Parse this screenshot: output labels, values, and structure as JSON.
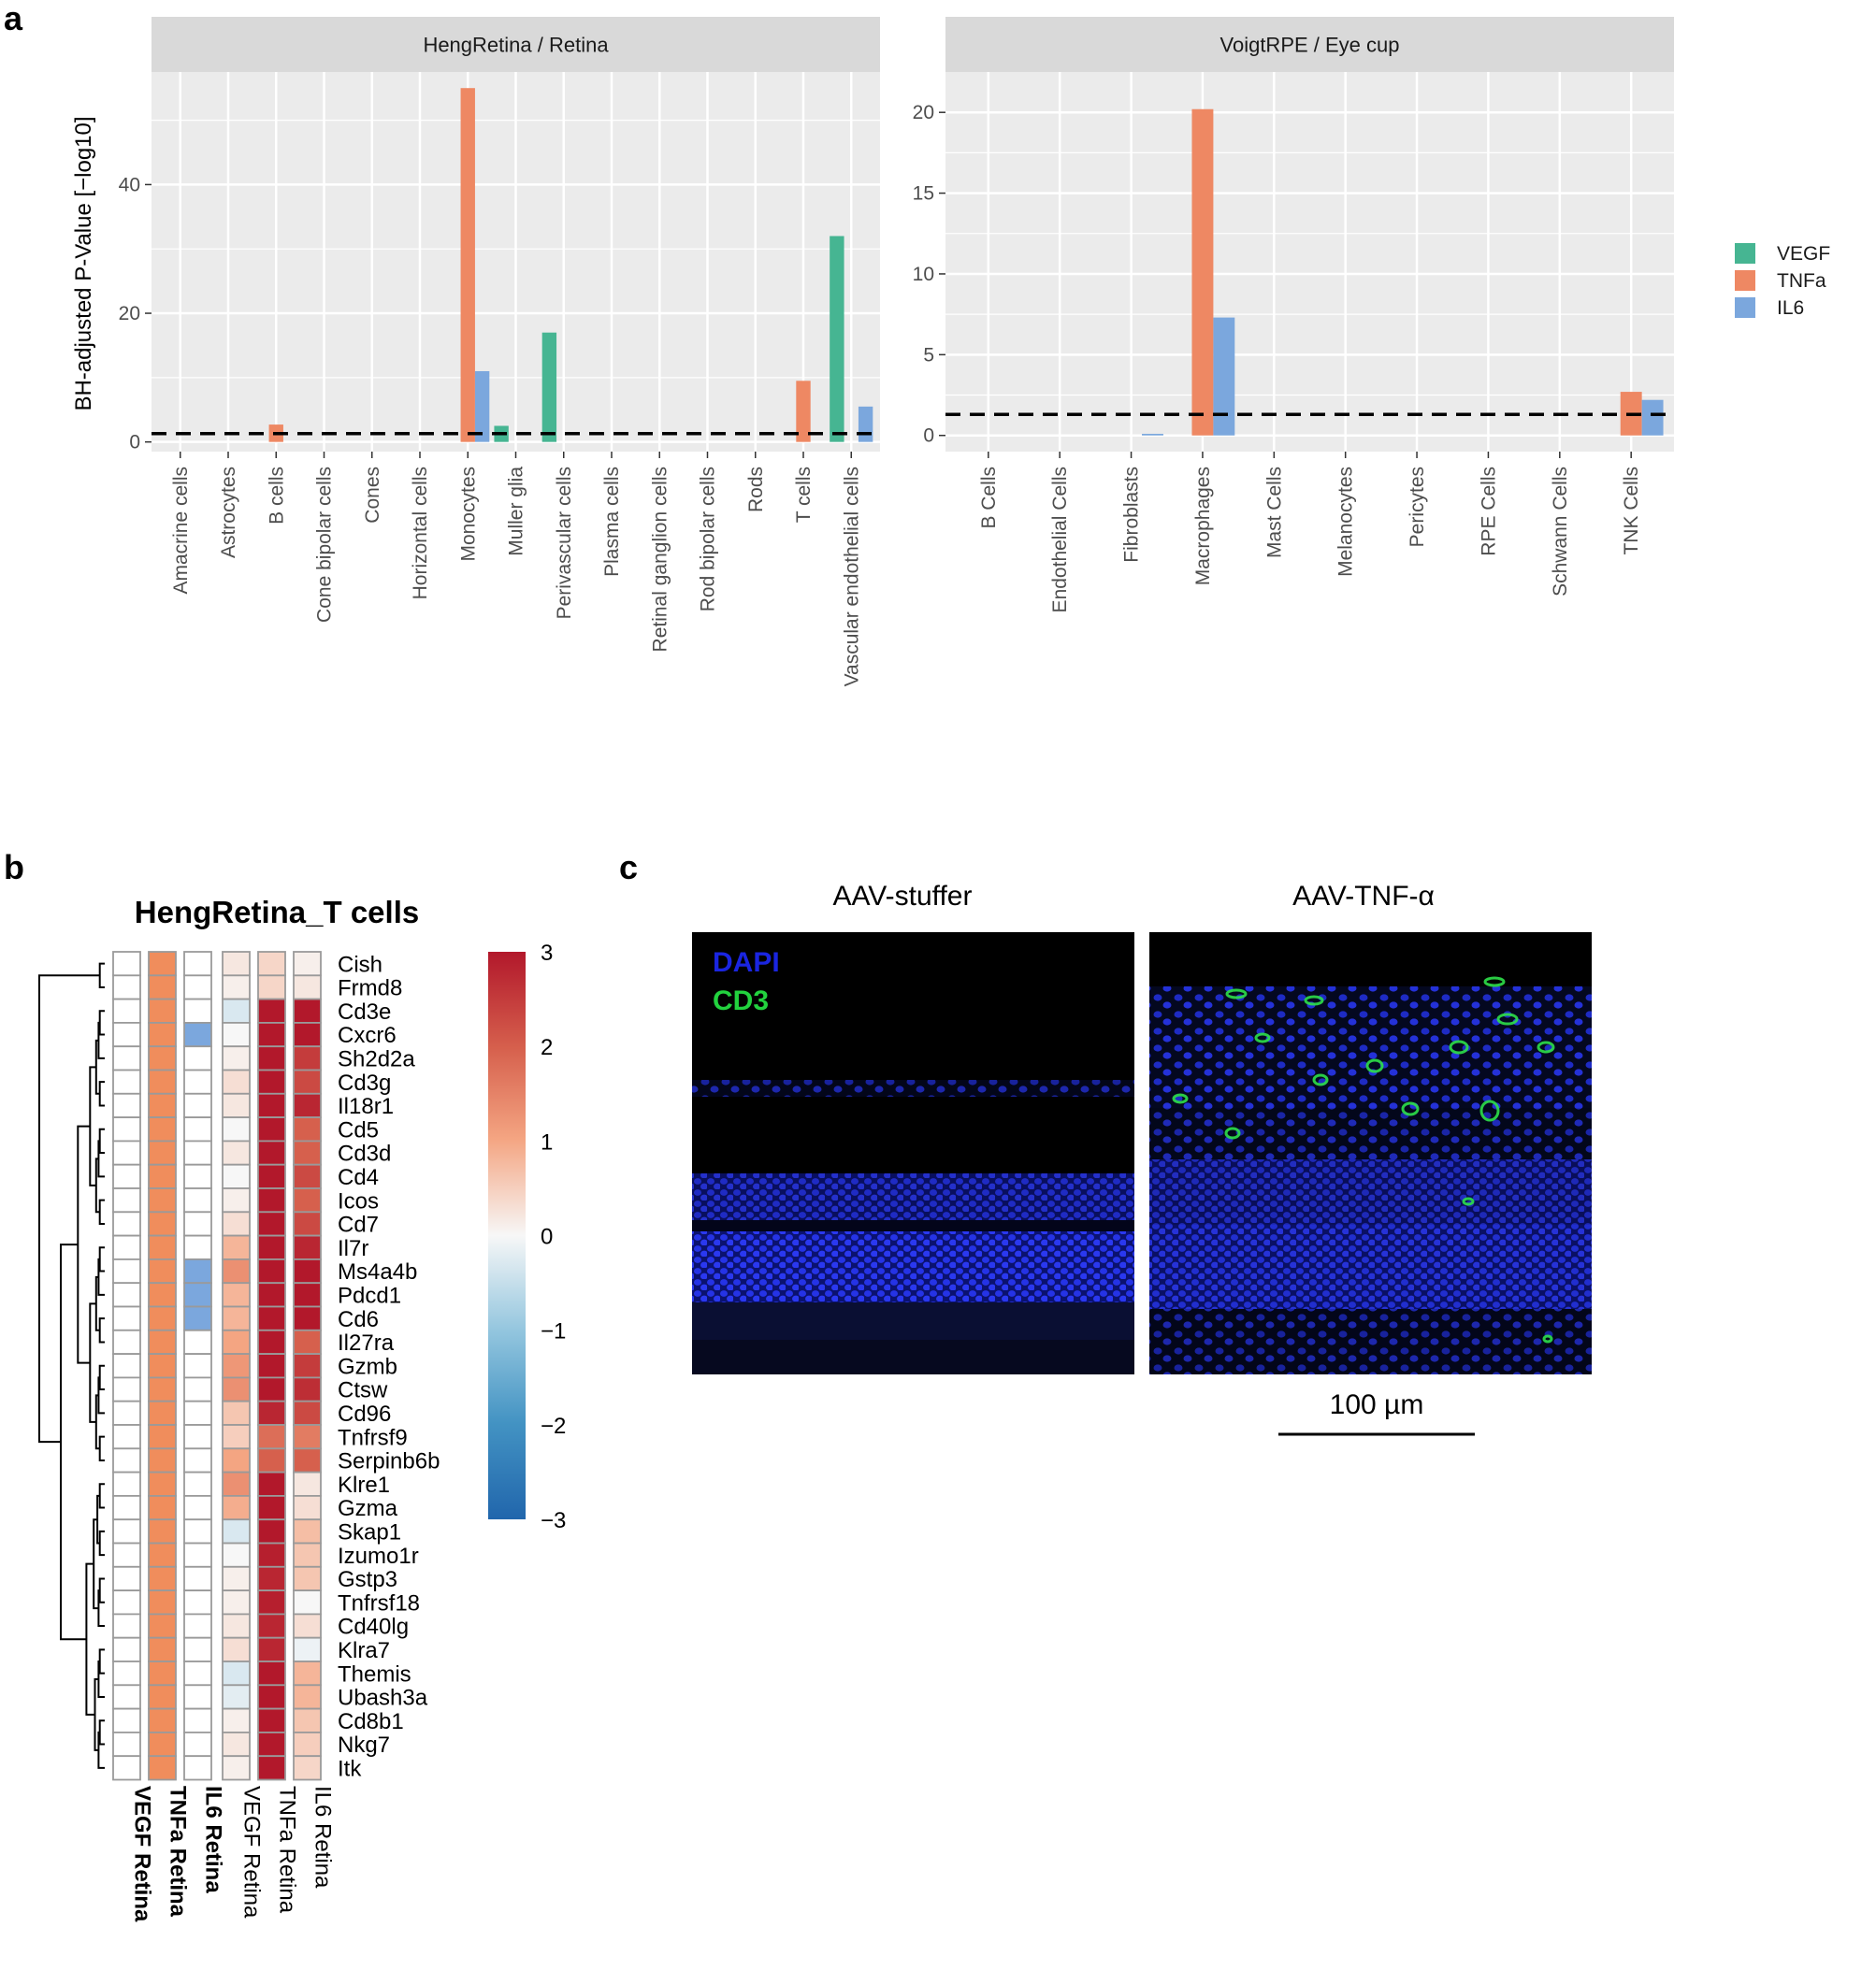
{
  "panels": {
    "a": "a",
    "b": "b",
    "c": "c"
  },
  "chart_data": [
    {
      "type": "bar",
      "title": "HengRetina / Retina",
      "ylabel": "BH-adjusted P-Value [−log10]",
      "xlabel": "",
      "ylim": [
        -1.5,
        57.5
      ],
      "yticks": [
        0,
        20,
        40
      ],
      "threshold": 1.3,
      "categories": [
        "Amacrine cells",
        "Astrocytes",
        "B cells",
        "Cone bipolar cells",
        "Cones",
        "Horizontal cells",
        "Monocytes",
        "Muller glia",
        "Perivascular cells",
        "Plasma cells",
        "Retinal ganglion cells",
        "Rod bipolar cells",
        "Rods",
        "T cells",
        "Vascular endothelial cells"
      ],
      "series": [
        {
          "name": "VEGF",
          "values": [
            0,
            0,
            0,
            0,
            0,
            0,
            0,
            2.5,
            17,
            0,
            0,
            0,
            0,
            0,
            32
          ]
        },
        {
          "name": "TNFa",
          "values": [
            0,
            0,
            2.7,
            0,
            0,
            0,
            55,
            0,
            0,
            0,
            0,
            0,
            0,
            9.5,
            0
          ]
        },
        {
          "name": "IL6",
          "values": [
            0,
            0,
            0,
            0,
            0,
            0,
            11,
            0,
            0,
            0,
            0,
            0,
            0,
            0,
            5.5
          ]
        }
      ]
    },
    {
      "type": "bar",
      "title": "VoigtRPE / Eye cup",
      "xlabel": "",
      "ylabel": "",
      "ylim": [
        -1.0,
        22.5
      ],
      "yticks": [
        0,
        5,
        10,
        15,
        20
      ],
      "threshold": 1.3,
      "categories": [
        "B Cells",
        "Endothelial Cells",
        "Fibroblasts",
        "Macrophages",
        "Mast Cells",
        "Melanocytes",
        "Pericytes",
        "RPE Cells",
        "Schwann Cells",
        "TNK Cells"
      ],
      "series": [
        {
          "name": "VEGF",
          "values": [
            0,
            0,
            0,
            0,
            0,
            0,
            0,
            0,
            0,
            0
          ]
        },
        {
          "name": "TNFa",
          "values": [
            0,
            0,
            0,
            20.2,
            0,
            0,
            0,
            0,
            0,
            2.7
          ]
        },
        {
          "name": "IL6",
          "values": [
            0,
            0,
            0.1,
            7.3,
            0,
            0,
            0,
            0,
            0,
            2.2
          ]
        }
      ]
    },
    {
      "type": "heatmap",
      "title": "HengRetina_T cells",
      "rows": [
        "Cish",
        "Frmd8",
        "Cd3e",
        "Cxcr6",
        "Sh2d2a",
        "Cd3g",
        "Il18r1",
        "Cd5",
        "Cd3d",
        "Cd4",
        "Icos",
        "Cd7",
        "Il7r",
        "Ms4a4b",
        "Pdcd1",
        "Cd6",
        "Il27ra",
        "Gzmb",
        "Ctsw",
        "Cd96",
        "Tnfrsf9",
        "Serpinb6b",
        "Klre1",
        "Gzma",
        "Skap1",
        "Izumo1r",
        "Gstp3",
        "Tnfrsf18",
        "Cd40lg",
        "Klra7",
        "Themis",
        "Ubash3a",
        "Cd8b1",
        "Nkg7",
        "Itk"
      ],
      "columns": [
        "VEGF Retina",
        "TNFa Retina",
        "IL6 Retina",
        "VEGF Retina",
        "TNFa Retina",
        "IL6 Retina"
      ],
      "bold_columns": [
        true,
        true,
        true,
        false,
        false,
        false
      ],
      "annotation_values": [
        [
          0,
          2,
          0
        ],
        [
          0,
          2,
          0
        ],
        [
          0,
          2,
          0
        ],
        [
          0,
          2,
          -1.3
        ],
        [
          0,
          2,
          0
        ],
        [
          0,
          2,
          0
        ],
        [
          0,
          2,
          0
        ],
        [
          0,
          2,
          0
        ],
        [
          0,
          2,
          0
        ],
        [
          0,
          2,
          0
        ],
        [
          0,
          2,
          0
        ],
        [
          0,
          2,
          0
        ],
        [
          0,
          2,
          0
        ],
        [
          0,
          2,
          -1.3
        ],
        [
          0,
          2,
          -1.3
        ],
        [
          0,
          2,
          -1.3
        ],
        [
          0,
          2,
          0
        ],
        [
          0,
          2,
          0
        ],
        [
          0,
          2,
          0
        ],
        [
          0,
          2,
          0
        ],
        [
          0,
          2,
          0
        ],
        [
          0,
          2,
          0
        ],
        [
          0,
          2,
          0
        ],
        [
          0,
          2,
          0
        ],
        [
          0,
          2,
          0
        ],
        [
          0,
          2,
          0
        ],
        [
          0,
          2,
          0
        ],
        [
          0,
          2,
          0
        ],
        [
          0,
          2,
          0
        ],
        [
          0,
          2,
          0
        ],
        [
          0,
          2,
          0
        ],
        [
          0,
          2,
          0
        ],
        [
          0,
          2,
          0
        ],
        [
          0,
          2,
          0
        ],
        [
          0,
          2,
          0
        ]
      ],
      "values": [
        [
          0.2,
          0.4,
          0.1
        ],
        [
          0.1,
          0.4,
          0.2
        ],
        [
          -0.3,
          3.0,
          3.0
        ],
        [
          0.0,
          3.0,
          3.0
        ],
        [
          0.1,
          3.0,
          2.5
        ],
        [
          0.3,
          3.0,
          2.3
        ],
        [
          0.2,
          3.0,
          2.8
        ],
        [
          0.0,
          3.0,
          2.0
        ],
        [
          0.2,
          3.0,
          2.0
        ],
        [
          0.0,
          3.0,
          2.3
        ],
        [
          0.1,
          3.0,
          2.0
        ],
        [
          0.3,
          3.0,
          2.3
        ],
        [
          0.8,
          3.0,
          2.8
        ],
        [
          1.3,
          3.0,
          3.0
        ],
        [
          0.8,
          3.0,
          3.0
        ],
        [
          0.8,
          3.0,
          3.0
        ],
        [
          1.0,
          3.0,
          2.0
        ],
        [
          1.2,
          3.0,
          2.5
        ],
        [
          1.3,
          3.0,
          2.7
        ],
        [
          0.6,
          2.8,
          2.3
        ],
        [
          0.5,
          1.8,
          1.6
        ],
        [
          1.0,
          2.0,
          2.0
        ],
        [
          1.3,
          3.0,
          0.2
        ],
        [
          0.9,
          3.0,
          0.3
        ],
        [
          -0.3,
          3.0,
          0.7
        ],
        [
          0.0,
          2.9,
          0.6
        ],
        [
          0.1,
          2.8,
          0.6
        ],
        [
          0.1,
          2.9,
          0.0
        ],
        [
          0.2,
          2.8,
          0.3
        ],
        [
          0.3,
          2.8,
          -0.1
        ],
        [
          -0.3,
          3.0,
          0.8
        ],
        [
          -0.2,
          3.0,
          0.8
        ],
        [
          0.1,
          3.0,
          0.6
        ],
        [
          0.2,
          3.0,
          0.5
        ],
        [
          0.1,
          3.0,
          0.4
        ]
      ],
      "color_range": [
        -3,
        3
      ],
      "colorbar_ticks": [
        "3",
        "2",
        "1",
        "0",
        "−1",
        "−2",
        "−3"
      ]
    }
  ],
  "legend": [
    {
      "name": "VEGF",
      "color": "#46B592"
    },
    {
      "name": "TNFa",
      "color": "#EE8863"
    },
    {
      "name": "IL6",
      "color": "#7BA7DD"
    }
  ],
  "microscopy": {
    "left_title": "AAV-stuffer",
    "right_title": "AAV-TNF-α",
    "stain_dapi": "DAPI",
    "stain_cd3": "CD3",
    "scale_label": "100 µm",
    "dapi_color": "#1A25E0",
    "cd3_color": "#22D23E"
  }
}
